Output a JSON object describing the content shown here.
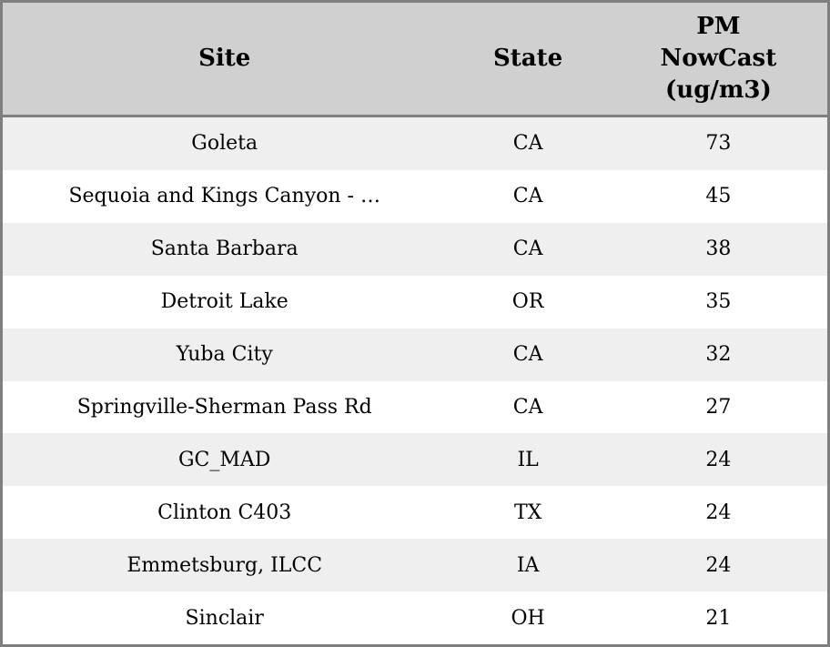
{
  "header": {
    "site": "Site",
    "state": "State",
    "pm_lines": [
      "PM",
      "NowCast",
      "(ug/m3)"
    ]
  },
  "rows": [
    {
      "site": "Goleta",
      "state": "CA",
      "pm": "73"
    },
    {
      "site": "Sequoia and Kings Canyon - …",
      "state": "CA",
      "pm": "45"
    },
    {
      "site": "Santa Barbara",
      "state": "CA",
      "pm": "38"
    },
    {
      "site": "Detroit Lake",
      "state": "OR",
      "pm": "35"
    },
    {
      "site": "Yuba City",
      "state": "CA",
      "pm": "32"
    },
    {
      "site": "Springville-Sherman Pass Rd",
      "state": "CA",
      "pm": "27"
    },
    {
      "site": "GC_MAD",
      "state": "IL",
      "pm": "24"
    },
    {
      "site": "Clinton C403",
      "state": "TX",
      "pm": "24"
    },
    {
      "site": "Emmetsburg, ILCC",
      "state": "IA",
      "pm": "24"
    },
    {
      "site": "Sinclair",
      "state": "OH",
      "pm": "21"
    }
  ],
  "colors": {
    "header_bg": "#d0d0d0",
    "stripe_bg": "#efefef",
    "row_bg": "#ffffff",
    "border": "#7f7f7f",
    "text": "#000000"
  },
  "chart_data": {
    "type": "table",
    "columns": [
      "Site",
      "State",
      "PM NowCast (ug/m3)"
    ],
    "rows": [
      [
        "Goleta",
        "CA",
        73
      ],
      [
        "Sequoia and Kings Canyon - …",
        "CA",
        45
      ],
      [
        "Santa Barbara",
        "CA",
        38
      ],
      [
        "Detroit Lake",
        "OR",
        35
      ],
      [
        "Yuba City",
        "CA",
        32
      ],
      [
        "Springville-Sherman Pass Rd",
        "CA",
        27
      ],
      [
        "GC_MAD",
        "IL",
        24
      ],
      [
        "Clinton C403",
        "TX",
        24
      ],
      [
        "Emmetsburg, ILCC",
        "IA",
        24
      ],
      [
        "Sinclair",
        "OH",
        21
      ]
    ]
  }
}
